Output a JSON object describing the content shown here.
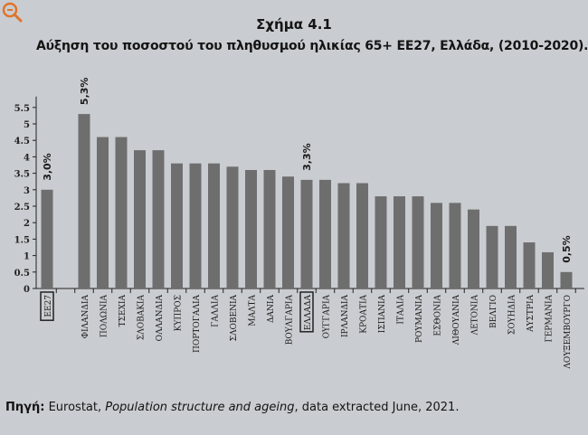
{
  "chart_data": {
    "type": "bar",
    "title": "Σχήμα 4.1",
    "subtitle": "Αύξηση του ποσοστού του πληθυσμού ηλικίας 65+ ΕΕ27, Ελλάδα, (2010-2020).",
    "xlabel": "",
    "ylabel": "",
    "ylim": [
      0,
      5.5
    ],
    "yticks": [
      "0",
      "0.5",
      "1",
      "1.5",
      "2",
      "2.5",
      "3",
      "3.5",
      "4",
      "4.5",
      "5",
      "5.5"
    ],
    "grid": false,
    "bar_color": "#6e6e6e",
    "categories": [
      "ΕΕ27",
      "",
      "ΦΙΛΑΝΔΙΑ",
      "ΠΟΛΩΝΙΑ",
      "ΤΣΕΧΙΑ",
      "ΣΛΟΒΑΚΙΑ",
      "ΟΛΛΑΝΔΙΑ",
      "ΚΥΠΡΟΣ",
      "ΠΟΡΤΟΓΑΛΙΑ",
      "ΓΑΛΛΙΑ",
      "ΣΛΟΒΕΝΙΑ",
      "ΜΑΛΤΑ",
      "ΔΑΝΙΑ",
      "ΒΟΥΛΓΑΡΙΑ",
      "ΕΛΛΑΔΑ",
      "ΟΥΓΓΑΡΙΑ",
      "ΙΡΛΑΝΔΙΑ",
      "ΚΡΟΑΤΙΑ",
      "ΙΣΠΑΝΙΑ",
      "ΙΤΑΛΙΑ",
      "ΡΟΥΜΑΝΙΑ",
      "ΕΣΘΟΝΙΑ",
      "ΛΙΘΟΥΑΝΙΑ",
      "ΛΕΤΟΝΙΑ",
      "ΒΕΛΓΙΟ",
      "ΣΟΥΗΔΙΑ",
      "ΑΥΣΤΡΙΑ",
      "ΓΕΡΜΑΝΙΑ",
      "ΛΟΥΞΕΜΒΟΥΡΓΟ"
    ],
    "values": [
      3.0,
      null,
      5.3,
      4.6,
      4.6,
      4.2,
      4.2,
      3.8,
      3.8,
      3.8,
      3.7,
      3.6,
      3.6,
      3.4,
      3.3,
      3.3,
      3.2,
      3.2,
      2.8,
      2.8,
      2.8,
      2.6,
      2.6,
      2.4,
      1.9,
      1.9,
      1.4,
      1.1,
      0.5
    ],
    "highlighted": [
      "ΕΕ27",
      "ΕΛΛΑΔΑ"
    ],
    "annotations": [
      {
        "category": "ΕΕ27",
        "text": "3,0%"
      },
      {
        "category": "ΦΙΛΑΝΔΙΑ",
        "text": "5,3%"
      },
      {
        "category": "ΕΛΛΑΔΑ",
        "text": "3,3%"
      },
      {
        "category": "ΛΟΥΞΕΜΒΟΥΡΓΟ",
        "text": "0,5%"
      }
    ]
  },
  "source": {
    "label": "Πηγή:",
    "org": "Eurostat, ",
    "dataset": "Population structure and ageing",
    "rest": ", data extracted June, 2021."
  },
  "watermark_icon": "zoom-magnifier-icon"
}
